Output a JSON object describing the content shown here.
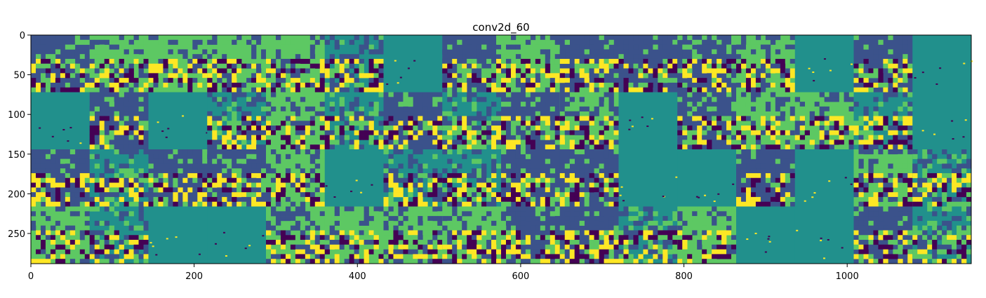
{
  "chart_data": {
    "type": "heatmap",
    "title": "conv2d_60",
    "xlabel": "",
    "ylabel": "",
    "x_range": [
      0,
      1152
    ],
    "y_range": [
      288,
      0
    ],
    "x_ticks": [
      0,
      200,
      400,
      600,
      800,
      1000
    ],
    "y_ticks": [
      0,
      50,
      100,
      150,
      200,
      250
    ],
    "grid": {
      "rows": 4,
      "cols": 16,
      "tile_size": 72
    },
    "colormap": "viridis",
    "colors": [
      "#440154",
      "#3b528b",
      "#21908c",
      "#5dc863",
      "#fde725"
    ],
    "grid_lines": false
  }
}
